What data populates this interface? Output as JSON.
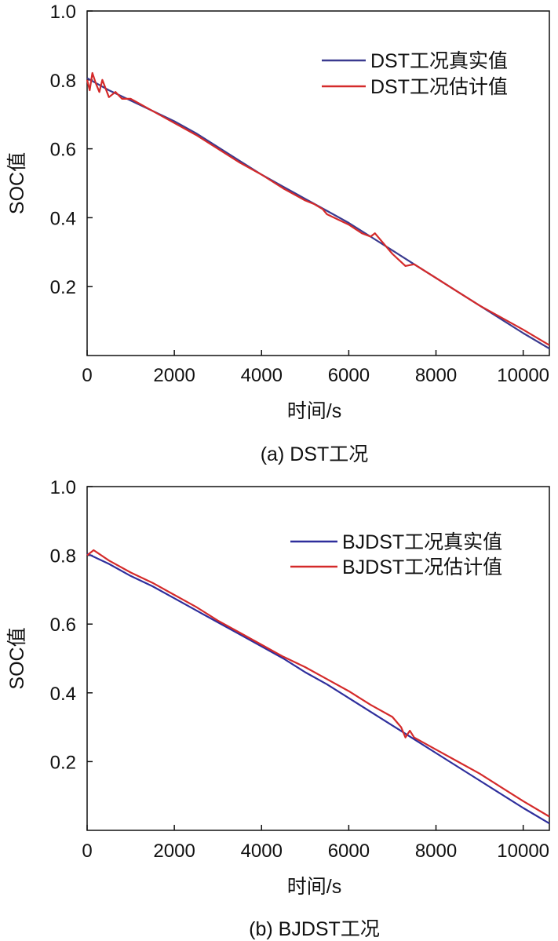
{
  "chart_data": [
    {
      "type": "line",
      "caption": "(a) DST工况",
      "xlabel": "时间/s",
      "ylabel": "SOC值",
      "xlim": [
        0,
        10600
      ],
      "ylim": [
        0,
        1.0
      ],
      "xticks": [
        0,
        2000,
        4000,
        6000,
        8000,
        10000
      ],
      "yticks": [
        0.2,
        0.4,
        0.6,
        0.8,
        1.0
      ],
      "xtick_labels": [
        "0",
        "2000",
        "4000",
        "6000",
        "8000",
        "10000"
      ],
      "ytick_labels": [
        "0.2",
        "0.4",
        "0.6",
        "0.8",
        "1.0"
      ],
      "legend_position": "top-right",
      "series": [
        {
          "name": "DST工况真实值",
          "color": "#3a3a8f",
          "x": [
            0,
            500,
            1000,
            1500,
            2000,
            2500,
            3000,
            3500,
            4000,
            4500,
            5000,
            5500,
            6000,
            6500,
            7000,
            7500,
            8000,
            8500,
            9000,
            9500,
            10000,
            10600
          ],
          "y": [
            0.805,
            0.77,
            0.74,
            0.71,
            0.68,
            0.645,
            0.605,
            0.565,
            0.525,
            0.49,
            0.455,
            0.42,
            0.385,
            0.345,
            0.305,
            0.265,
            0.225,
            0.185,
            0.145,
            0.105,
            0.065,
            0.02
          ]
        },
        {
          "name": "DST工况估计值",
          "color": "#d42a2a",
          "x": [
            0,
            60,
            120,
            200,
            280,
            350,
            500,
            650,
            800,
            1000,
            1500,
            2000,
            2500,
            3000,
            3500,
            4000,
            4500,
            5000,
            5200,
            5400,
            5500,
            6000,
            6300,
            6500,
            6600,
            7000,
            7300,
            7500,
            8000,
            8500,
            9000,
            9500,
            10000,
            10600
          ],
          "y": [
            0.8,
            0.77,
            0.82,
            0.79,
            0.765,
            0.8,
            0.75,
            0.765,
            0.745,
            0.745,
            0.71,
            0.675,
            0.64,
            0.6,
            0.56,
            0.525,
            0.485,
            0.45,
            0.44,
            0.425,
            0.41,
            0.38,
            0.355,
            0.345,
            0.355,
            0.295,
            0.26,
            0.265,
            0.225,
            0.185,
            0.145,
            0.11,
            0.075,
            0.03
          ]
        }
      ]
    },
    {
      "type": "line",
      "caption": "(b) BJDST工况",
      "xlabel": "时间/s",
      "ylabel": "SOC值",
      "xlim": [
        0,
        10600
      ],
      "ylim": [
        0,
        1.0
      ],
      "xticks": [
        0,
        2000,
        4000,
        6000,
        8000,
        10000
      ],
      "yticks": [
        0.2,
        0.4,
        0.6,
        0.8,
        1.0
      ],
      "xtick_labels": [
        "0",
        "2000",
        "4000",
        "6000",
        "8000",
        "10000"
      ],
      "ytick_labels": [
        "0.2",
        "0.4",
        "0.6",
        "0.8",
        "1.0"
      ],
      "legend_position": "top-right",
      "series": [
        {
          "name": "BJDST工况真实值",
          "color": "#2e2e9c",
          "x": [
            0,
            500,
            1000,
            1500,
            2000,
            2500,
            3000,
            3500,
            4000,
            4500,
            5000,
            5500,
            6000,
            6500,
            7000,
            7500,
            8000,
            8500,
            9000,
            9500,
            10000,
            10600
          ],
          "y": [
            0.805,
            0.775,
            0.74,
            0.71,
            0.675,
            0.64,
            0.605,
            0.57,
            0.535,
            0.5,
            0.46,
            0.425,
            0.385,
            0.345,
            0.305,
            0.265,
            0.225,
            0.185,
            0.145,
            0.105,
            0.065,
            0.02
          ]
        },
        {
          "name": "BJDST工况估计值",
          "color": "#d42a2a",
          "x": [
            0,
            150,
            500,
            1000,
            1500,
            2000,
            2500,
            3000,
            3500,
            4000,
            4500,
            5000,
            5500,
            6000,
            6500,
            7000,
            7200,
            7300,
            7400,
            7500,
            8000,
            8500,
            9000,
            9500,
            10000,
            10600
          ],
          "y": [
            0.8,
            0.815,
            0.785,
            0.75,
            0.72,
            0.685,
            0.65,
            0.61,
            0.575,
            0.54,
            0.505,
            0.475,
            0.44,
            0.405,
            0.365,
            0.33,
            0.3,
            0.27,
            0.29,
            0.27,
            0.235,
            0.2,
            0.165,
            0.125,
            0.085,
            0.04
          ]
        }
      ]
    }
  ]
}
